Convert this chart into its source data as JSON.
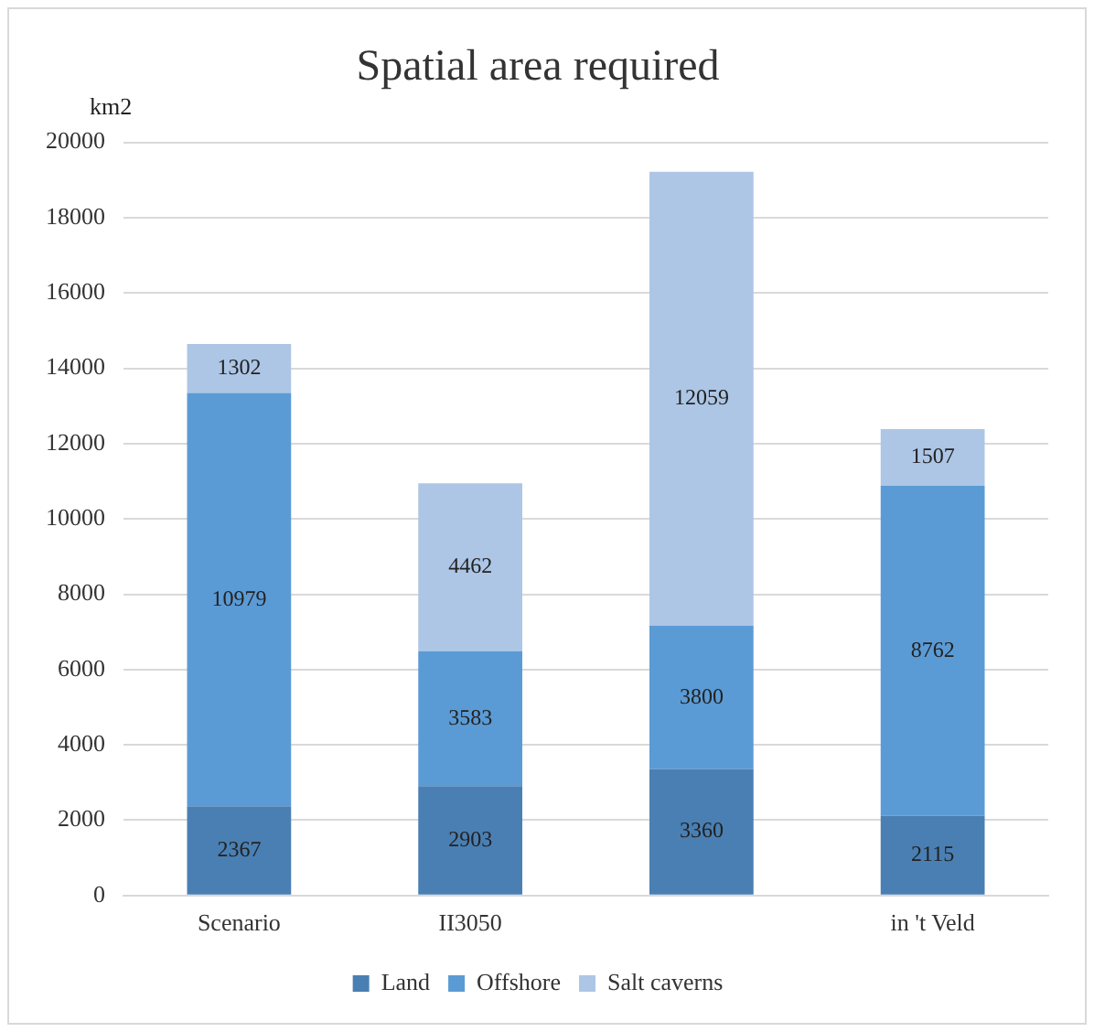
{
  "chart_data": {
    "type": "bar",
    "title": "Spatial area required",
    "ylabel": "km2",
    "categories": [
      "Scenario",
      "II3050",
      null,
      "in 't Veld"
    ],
    "series": [
      {
        "name": "Land",
        "color": "#4a7fb3",
        "values": [
          2367,
          2903,
          3360,
          2115
        ]
      },
      {
        "name": "Offshore",
        "color": "#5b9bd5",
        "values": [
          10979,
          3583,
          3800,
          8762
        ]
      },
      {
        "name": "Salt caverns",
        "color": "#adc6e6",
        "values": [
          1302,
          4462,
          12059,
          1507
        ]
      }
    ],
    "stacked": true,
    "ylim": [
      0,
      20000
    ],
    "yticks": [
      0,
      2000,
      4000,
      6000,
      8000,
      10000,
      12000,
      14000,
      16000,
      18000,
      20000
    ],
    "grid": "y",
    "legend": "bottom",
    "data_labels": true
  }
}
